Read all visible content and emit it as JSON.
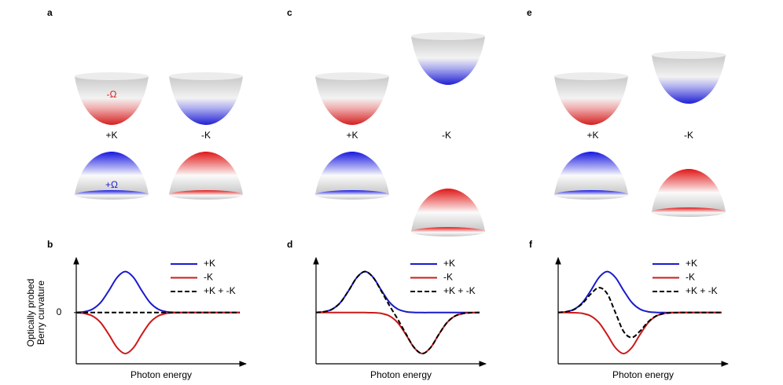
{
  "panels": [
    {
      "label": "a",
      "k_plus": "+K",
      "k_minus": "-K",
      "omega_top": "-Ω",
      "omega_bottom": "+Ω"
    },
    {
      "label": "c",
      "k_plus": "+K",
      "k_minus": "-K"
    },
    {
      "label": "e",
      "k_plus": "+K",
      "k_minus": "-K"
    }
  ],
  "chart_data": [
    {
      "type": "line",
      "label": "b",
      "ylabel": [
        "Optically probed",
        "Berry curvature"
      ],
      "xlabel": "Photon energy",
      "xlim": [
        0,
        1
      ],
      "ylim": [
        -1.25,
        1.3
      ],
      "yticks": [
        0
      ],
      "x": [
        0,
        0.05,
        0.1,
        0.15,
        0.2,
        0.25,
        0.3,
        0.35,
        0.4,
        0.45,
        0.5,
        0.55,
        0.6,
        0.65,
        0.7,
        0.75,
        0.8,
        0.85,
        0.9,
        0.95,
        1
      ],
      "series": [
        {
          "name": "+K",
          "color": "#1a1acc",
          "style": "solid",
          "values": [
            0.004,
            0.021,
            0.085,
            0.249,
            0.54,
            0.857,
            1,
            0.857,
            0.54,
            0.249,
            0.085,
            0.021,
            0.004,
            0,
            0,
            0,
            0,
            0,
            0,
            0,
            0
          ]
        },
        {
          "name": "-K",
          "color": "#cc1a1a",
          "style": "solid",
          "values": [
            -0.004,
            -0.021,
            -0.085,
            -0.249,
            -0.54,
            -0.857,
            -1,
            -0.857,
            -0.54,
            -0.249,
            -0.085,
            -0.021,
            -0.004,
            0,
            0,
            0,
            0,
            0,
            0,
            0,
            0
          ]
        },
        {
          "name": "+K + -K",
          "color": "#000000",
          "style": "dashed",
          "values": [
            0,
            0,
            0,
            0,
            0,
            0,
            0,
            0,
            0,
            0,
            0,
            0,
            0,
            0,
            0,
            0,
            0,
            0,
            0,
            0,
            0
          ]
        }
      ]
    },
    {
      "type": "line",
      "label": "d",
      "xlabel": "Photon energy",
      "xlim": [
        0,
        1
      ],
      "ylim": [
        -1.25,
        1.3
      ],
      "x": [
        0,
        0.05,
        0.1,
        0.15,
        0.2,
        0.25,
        0.3,
        0.35,
        0.4,
        0.45,
        0.5,
        0.55,
        0.6,
        0.65,
        0.7,
        0.75,
        0.8,
        0.85,
        0.9,
        0.95,
        1
      ],
      "series": [
        {
          "name": "+K",
          "color": "#1a1acc",
          "style": "solid",
          "values": [
            0.004,
            0.021,
            0.085,
            0.249,
            0.54,
            0.857,
            1,
            0.857,
            0.54,
            0.249,
            0.085,
            0.021,
            0.004,
            0,
            0,
            0,
            0,
            0,
            0,
            0,
            0
          ]
        },
        {
          "name": "-K",
          "color": "#cc1a1a",
          "style": "solid",
          "values": [
            0,
            0,
            0,
            0,
            0,
            0,
            0,
            -0.004,
            -0.021,
            -0.085,
            -0.249,
            -0.54,
            -0.857,
            -1,
            -0.857,
            -0.54,
            -0.249,
            -0.085,
            -0.021,
            -0.004,
            0
          ]
        },
        {
          "name": "+K + -K",
          "color": "#000000",
          "style": "dashed",
          "values": [
            0.004,
            0.021,
            0.085,
            0.249,
            0.54,
            0.857,
            1,
            0.853,
            0.519,
            0.164,
            -0.164,
            -0.519,
            -0.853,
            -1,
            -0.857,
            -0.54,
            -0.249,
            -0.085,
            -0.021,
            -0.004,
            0
          ]
        }
      ]
    },
    {
      "type": "line",
      "label": "f",
      "xlabel": "Photon energy",
      "xlim": [
        0,
        1
      ],
      "ylim": [
        -1.25,
        1.3
      ],
      "x": [
        0,
        0.05,
        0.1,
        0.15,
        0.2,
        0.25,
        0.3,
        0.35,
        0.4,
        0.45,
        0.5,
        0.55,
        0.6,
        0.65,
        0.7,
        0.75,
        0.8,
        0.85,
        0.9,
        0.95,
        1
      ],
      "series": [
        {
          "name": "+K",
          "color": "#1a1acc",
          "style": "solid",
          "values": [
            0.004,
            0.021,
            0.085,
            0.249,
            0.54,
            0.857,
            1,
            0.857,
            0.54,
            0.249,
            0.085,
            0.021,
            0.004,
            0,
            0,
            0,
            0,
            0,
            0,
            0,
            0
          ]
        },
        {
          "name": "-K",
          "color": "#cc1a1a",
          "style": "solid",
          "values": [
            0,
            0,
            -0.004,
            -0.021,
            -0.085,
            -0.249,
            -0.54,
            -0.857,
            -1,
            -0.857,
            -0.54,
            -0.249,
            -0.085,
            -0.021,
            -0.004,
            0,
            0,
            0,
            0,
            0,
            0
          ]
        },
        {
          "name": "+K + -K",
          "color": "#000000",
          "style": "dashed",
          "values": [
            0.004,
            0.021,
            0.081,
            0.228,
            0.455,
            0.608,
            0.46,
            0,
            -0.46,
            -0.608,
            -0.455,
            -0.228,
            -0.081,
            -0.021,
            -0.004,
            0,
            0,
            0,
            0,
            0,
            0
          ]
        }
      ]
    }
  ]
}
